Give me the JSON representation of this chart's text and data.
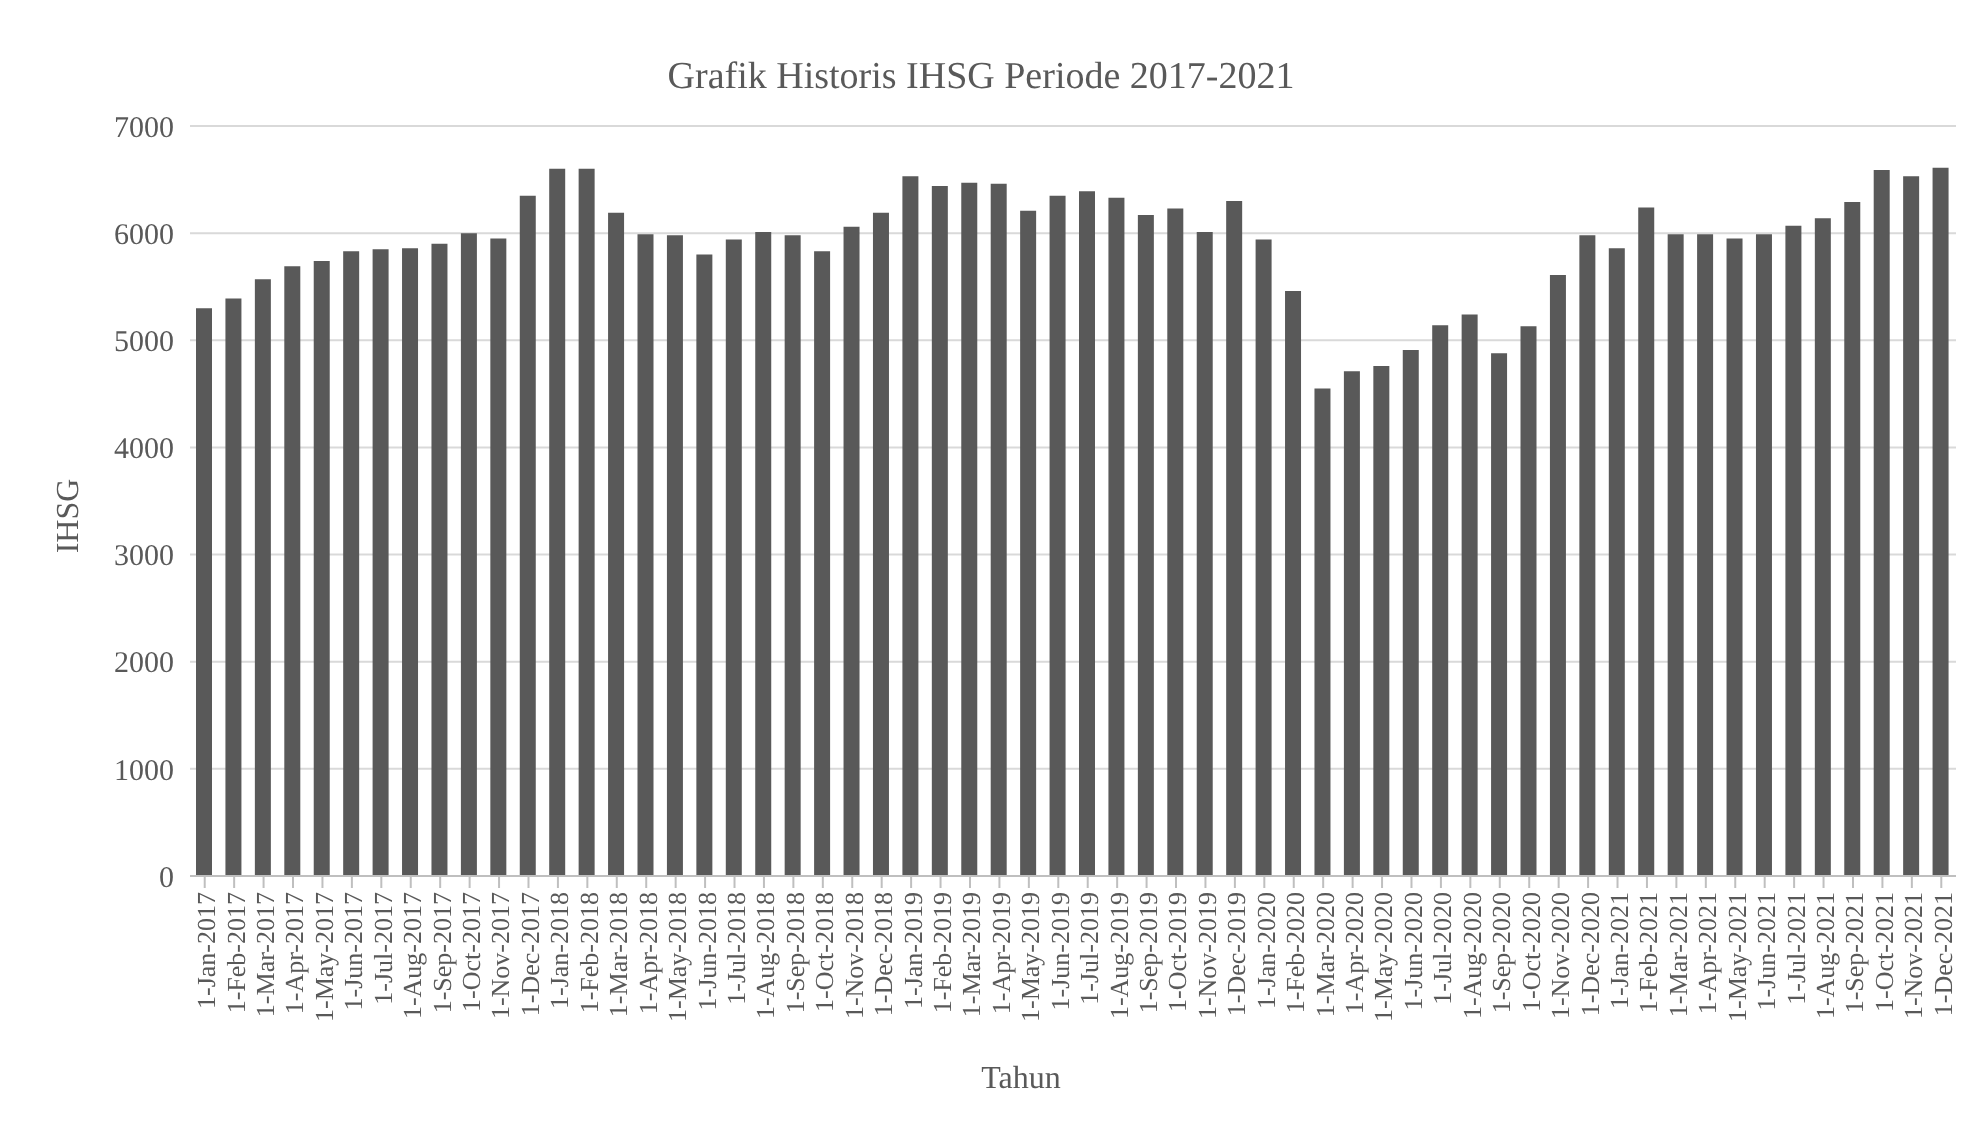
{
  "chart_data": {
    "type": "bar",
    "title": "Grafik Historis IHSG Periode 2017-2021",
    "xlabel": "Tahun",
    "ylabel": "IHSG",
    "categories": [
      "1-Jan-2017",
      "1-Feb-2017",
      "1-Mar-2017",
      "1-Apr-2017",
      "1-May-2017",
      "1-Jun-2017",
      "1-Jul-2017",
      "1-Aug-2017",
      "1-Sep-2017",
      "1-Oct-2017",
      "1-Nov-2017",
      "1-Dec-2017",
      "1-Jan-2018",
      "1-Feb-2018",
      "1-Mar-2018",
      "1-Apr-2018",
      "1-May-2018",
      "1-Jun-2018",
      "1-Jul-2018",
      "1-Aug-2018",
      "1-Sep-2018",
      "1-Oct-2018",
      "1-Nov-2018",
      "1-Dec-2018",
      "1-Jan-2019",
      "1-Feb-2019",
      "1-Mar-2019",
      "1-Apr-2019",
      "1-May-2019",
      "1-Jun-2019",
      "1-Jul-2019",
      "1-Aug-2019",
      "1-Sep-2019",
      "1-Oct-2019",
      "1-Nov-2019",
      "1-Dec-2019",
      "1-Jan-2020",
      "1-Feb-2020",
      "1-Mar-2020",
      "1-Apr-2020",
      "1-May-2020",
      "1-Jun-2020",
      "1-Jul-2020",
      "1-Aug-2020",
      "1-Sep-2020",
      "1-Oct-2020",
      "1-Nov-2020",
      "1-Dec-2020",
      "1-Jan-2021",
      "1-Feb-2021",
      "1-Mar-2021",
      "1-Apr-2021",
      "1-May-2021",
      "1-Jun-2021",
      "1-Jul-2021",
      "1-Aug-2021",
      "1-Sep-2021",
      "1-Oct-2021",
      "1-Nov-2021",
      "1-Dec-2021"
    ],
    "values": [
      5300,
      5390,
      5570,
      5690,
      5740,
      5830,
      5850,
      5860,
      5900,
      6000,
      5950,
      6350,
      6600,
      6600,
      6190,
      5990,
      5980,
      5800,
      5940,
      6010,
      5980,
      5830,
      6060,
      6190,
      6530,
      6440,
      6470,
      6460,
      6210,
      6350,
      6390,
      6330,
      6170,
      6230,
      6010,
      6300,
      5940,
      5460,
      4550,
      4710,
      4760,
      4910,
      5140,
      5240,
      4880,
      5130,
      5610,
      5980,
      5860,
      6240,
      5990,
      5990,
      5950,
      5990,
      6070,
      6140,
      6290,
      6590,
      6530,
      6610
    ],
    "color": "#595959",
    "ylim": [
      0,
      7000
    ],
    "yticks": [
      0,
      1000,
      2000,
      3000,
      4000,
      5000,
      6000,
      7000
    ],
    "grid": "y"
  }
}
